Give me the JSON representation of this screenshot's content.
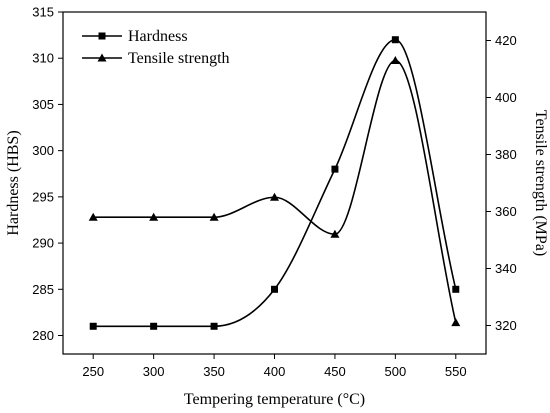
{
  "chart_data": {
    "type": "line",
    "x": [
      250,
      300,
      350,
      400,
      450,
      500,
      550
    ],
    "xlabel": "Tempering temperature (°C)",
    "ylabel": "Hardness (HBS)",
    "y2label": "Tensile strength (MPa)",
    "xlim": [
      225,
      575
    ],
    "ylim": [
      278,
      315
    ],
    "y2lim": [
      310,
      430
    ],
    "xticks": [
      250,
      300,
      350,
      400,
      450,
      500,
      550
    ],
    "yticks": [
      280,
      285,
      290,
      295,
      300,
      305,
      310,
      315
    ],
    "y2ticks": [
      320,
      340,
      360,
      380,
      400,
      420
    ],
    "grid": false,
    "legend_position": "top-left",
    "smooth": true,
    "series": [
      {
        "name": "Hardness",
        "axis": "left",
        "marker": "square",
        "color": "#000000",
        "values": [
          281,
          281,
          281,
          285,
          298,
          312,
          285
        ]
      },
      {
        "name": "Tensile strength",
        "axis": "right",
        "marker": "triangle",
        "color": "#000000",
        "values": [
          358,
          358,
          358,
          365,
          352,
          413,
          321
        ]
      }
    ]
  }
}
